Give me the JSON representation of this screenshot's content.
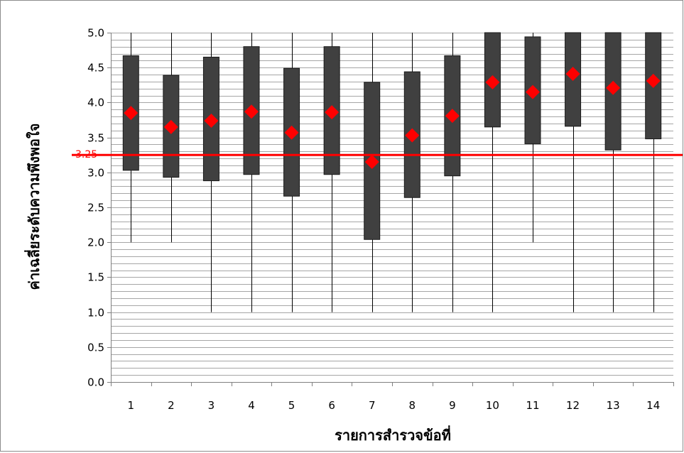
{
  "chart_data": {
    "type": "box",
    "title": "",
    "xlabel": "รายการสำรวจข้อที่",
    "ylabel": "ค่าเฉลี่ยระดับความพึงพอใจ",
    "ylim": [
      0,
      5
    ],
    "yticks": [
      "0.0",
      "0.5",
      "1.0",
      "1.5",
      "2.0",
      "2.5",
      "3.0",
      "3.5",
      "4.0",
      "4.5",
      "5.0"
    ],
    "minor_grid_step": 0.1,
    "grid": true,
    "legend": "none",
    "categories": [
      "1",
      "2",
      "3",
      "4",
      "5",
      "6",
      "7",
      "8",
      "9",
      "10",
      "11",
      "12",
      "13",
      "14"
    ],
    "series": [
      {
        "whisker_min": [
          2.0,
          2.0,
          1.0,
          1.0,
          1.0,
          1.0,
          1.0,
          1.0,
          1.0,
          1.0,
          2.0,
          1.0,
          1.0,
          1.0
        ],
        "q1": [
          3.03,
          2.93,
          2.88,
          2.97,
          2.66,
          2.97,
          2.04,
          2.64,
          2.95,
          3.65,
          3.41,
          3.66,
          3.32,
          3.48
        ],
        "q3": [
          4.67,
          4.39,
          4.65,
          4.8,
          4.49,
          4.8,
          4.29,
          4.44,
          4.67,
          5.0,
          4.94,
          5.0,
          5.0,
          5.0
        ],
        "whisker_max": [
          5.0,
          5.0,
          5.0,
          5.0,
          5.0,
          5.0,
          5.0,
          5.0,
          5.0,
          5.0,
          5.0,
          5.0,
          5.0,
          5.0
        ],
        "mean": [
          3.85,
          3.65,
          3.74,
          3.87,
          3.57,
          3.86,
          3.15,
          3.53,
          3.81,
          4.29,
          4.15,
          4.41,
          4.21,
          4.31
        ]
      }
    ],
    "reference_line": {
      "value": 3.25,
      "label": "3.25"
    },
    "colors": {
      "box": "#404040",
      "whisker": "#000000",
      "mean_marker": "#ff0000",
      "reference": "#ff0000",
      "grid": "#a6a6a6"
    }
  }
}
